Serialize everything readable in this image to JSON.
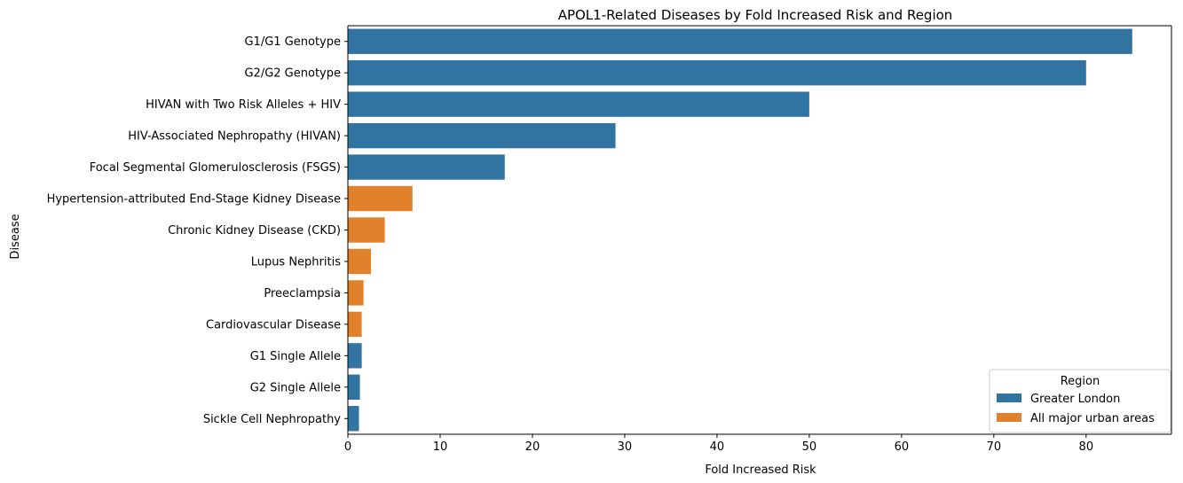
{
  "chart_data": {
    "type": "bar",
    "orientation": "horizontal",
    "title": "APOL1-Related Diseases by Fold Increased Risk and Region",
    "xlabel": "Fold Increased Risk",
    "ylabel": "Disease",
    "xlim": [
      0,
      89.25
    ],
    "xticks": [
      0,
      10,
      20,
      30,
      40,
      50,
      60,
      70,
      80
    ],
    "grid": false,
    "legend": {
      "title": "Region",
      "placement": "lower-right",
      "entries": [
        {
          "name": "Greater London",
          "color": "#3274a1"
        },
        {
          "name": "All major urban areas",
          "color": "#e1812c"
        }
      ]
    },
    "categories": [
      "G1/G1 Genotype",
      "G2/G2 Genotype",
      "HIVAN with Two Risk Alleles + HIV",
      "HIV-Associated Nephropathy (HIVAN)",
      "Focal Segmental Glomerulosclerosis (FSGS)",
      "Hypertension-attributed End-Stage Kidney Disease",
      "Chronic Kidney Disease (CKD)",
      "Lupus Nephritis",
      "Preeclampsia",
      "Cardiovascular Disease",
      "G1 Single Allele",
      "G2 Single Allele",
      "Sickle Cell Nephropathy"
    ],
    "values": [
      85,
      80,
      50,
      29,
      17,
      7,
      4,
      2.5,
      1.7,
      1.5,
      1.5,
      1.3,
      1.2
    ],
    "regions": [
      "Greater London",
      "Greater London",
      "Greater London",
      "Greater London",
      "Greater London",
      "All major urban areas",
      "All major urban areas",
      "All major urban areas",
      "All major urban areas",
      "All major urban areas",
      "Greater London",
      "Greater London",
      "Greater London"
    ]
  }
}
